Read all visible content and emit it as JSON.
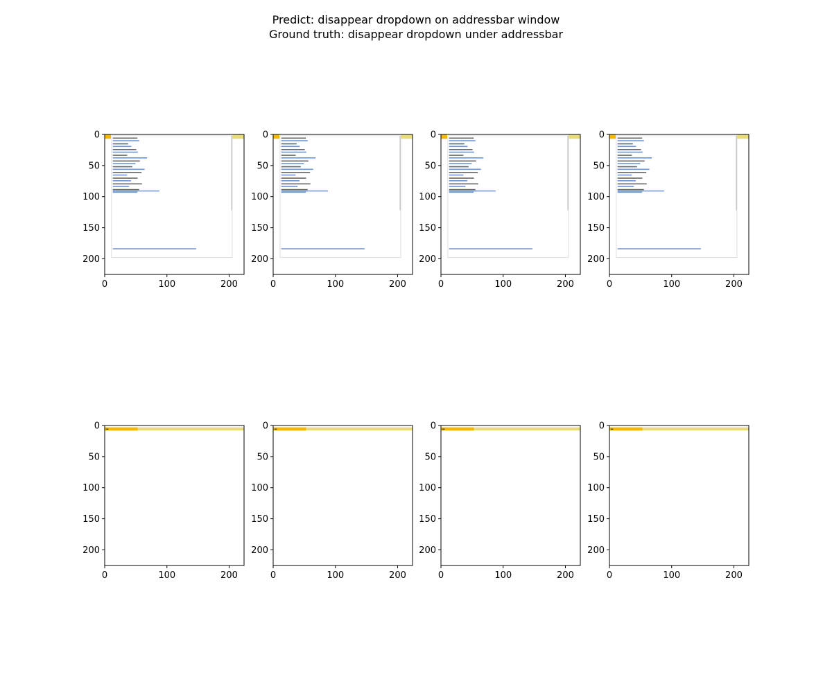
{
  "figure": {
    "title_line_1": "Predict: disappear dropdown on addressbar window",
    "title_line_2": "Ground truth: disappear dropdown under addressbar"
  },
  "colors": {
    "frame": "#000000",
    "thumb_background": "#ffffff",
    "yellow_bar": "#e8dc7a",
    "orange_bar": "#f5b800",
    "link_text": "#3a6fd0",
    "dark_text": "#333333",
    "scroll_line": "#c0c0c0"
  },
  "chart_data": {
    "type": "image-grid",
    "rows": 2,
    "cols": 4,
    "x_ticks": [
      "0",
      "100",
      "200"
    ],
    "y_ticks": [
      "0",
      "50",
      "100",
      "150",
      "200"
    ],
    "xlim": [
      0,
      224
    ],
    "ylim": [
      224,
      0
    ],
    "panels": [
      {
        "row": 0,
        "col": 0,
        "content": "dropdown-open"
      },
      {
        "row": 0,
        "col": 1,
        "content": "dropdown-open"
      },
      {
        "row": 0,
        "col": 2,
        "content": "dropdown-open"
      },
      {
        "row": 0,
        "col": 3,
        "content": "dropdown-open"
      },
      {
        "row": 1,
        "col": 0,
        "content": "dropdown-closed"
      },
      {
        "row": 1,
        "col": 1,
        "content": "dropdown-closed"
      },
      {
        "row": 1,
        "col": 2,
        "content": "dropdown-closed"
      },
      {
        "row": 1,
        "col": 3,
        "content": "dropdown-closed"
      }
    ]
  }
}
